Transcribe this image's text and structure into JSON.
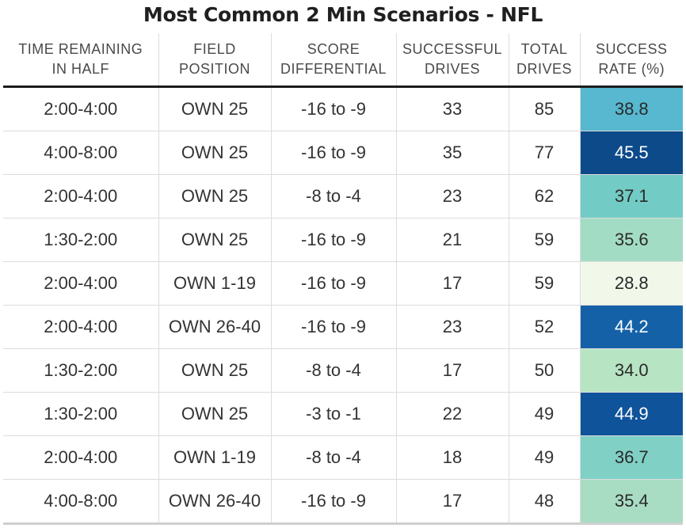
{
  "title": "Most Common 2 Min Scenarios - NFL",
  "chart_data": {
    "type": "table",
    "title": "Most Common 2 Min Scenarios - NFL",
    "columns": [
      {
        "line1": "TIME REMAINING",
        "line2": "IN HALF"
      },
      {
        "line1": "FIELD",
        "line2": "POSITION"
      },
      {
        "line1": "SCORE",
        "line2": "DIFFERENTIAL"
      },
      {
        "line1": "SUCCESSFUL",
        "line2": "DRIVES"
      },
      {
        "line1": "TOTAL",
        "line2": "DRIVES"
      },
      {
        "line1": "SUCCESS",
        "line2": "RATE (%)"
      }
    ],
    "rows": [
      {
        "time": "2:00-4:00",
        "field": "OWN 25",
        "score": "-16 to -9",
        "successful": "33",
        "total": "85",
        "rate": "38.8",
        "color": "#57b8cf",
        "text_color": "#2a2a2a"
      },
      {
        "time": "4:00-8:00",
        "field": "OWN 25",
        "score": "-16 to -9",
        "successful": "35",
        "total": "77",
        "rate": "45.5",
        "color": "#0c4a8a",
        "text_color": "#ffffff"
      },
      {
        "time": "2:00-4:00",
        "field": "OWN 25",
        "score": "-8 to -4",
        "successful": "23",
        "total": "62",
        "rate": "37.1",
        "color": "#72cbc4",
        "text_color": "#2a2a2a"
      },
      {
        "time": "1:30-2:00",
        "field": "OWN 25",
        "score": "-16 to -9",
        "successful": "21",
        "total": "59",
        "rate": "35.6",
        "color": "#a3dcc4",
        "text_color": "#2a2a2a"
      },
      {
        "time": "2:00-4:00",
        "field": "OWN 1-19",
        "score": "-16 to -9",
        "successful": "17",
        "total": "59",
        "rate": "28.8",
        "color": "#f1f8ea",
        "text_color": "#2a2a2a"
      },
      {
        "time": "2:00-4:00",
        "field": "OWN 26-40",
        "score": "-16 to -9",
        "successful": "23",
        "total": "52",
        "rate": "44.2",
        "color": "#1561a8",
        "text_color": "#ffffff"
      },
      {
        "time": "1:30-2:00",
        "field": "OWN 25",
        "score": "-8 to -4",
        "successful": "17",
        "total": "50",
        "rate": "34.0",
        "color": "#b7e4c2",
        "text_color": "#2a2a2a"
      },
      {
        "time": "1:30-2:00",
        "field": "OWN 25",
        "score": "-3 to -1",
        "successful": "22",
        "total": "49",
        "rate": "44.9",
        "color": "#0f539a",
        "text_color": "#ffffff"
      },
      {
        "time": "2:00-4:00",
        "field": "OWN 1-19",
        "score": "-8 to -4",
        "successful": "18",
        "total": "49",
        "rate": "36.7",
        "color": "#80d0c6",
        "text_color": "#2a2a2a"
      },
      {
        "time": "4:00-8:00",
        "field": "OWN 26-40",
        "score": "-16 to -9",
        "successful": "17",
        "total": "48",
        "rate": "35.4",
        "color": "#a8ddc4",
        "text_color": "#2a2a2a"
      }
    ]
  }
}
